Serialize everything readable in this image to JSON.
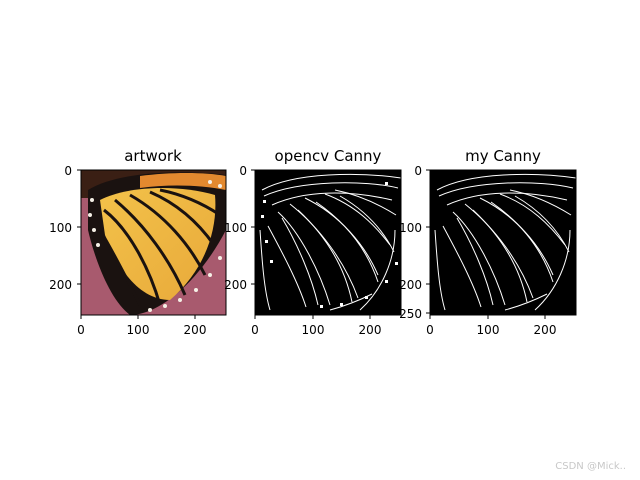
{
  "chart_data": [
    {
      "type": "image",
      "title": "artwork",
      "content": "butterfly-wing-photo",
      "xlim": [
        0,
        255
      ],
      "ylim": [
        0,
        255
      ],
      "xticks": [
        0,
        100,
        200
      ],
      "yticks": [
        0,
        100,
        200
      ],
      "xtick_labels": [
        "0",
        "100",
        "200"
      ],
      "ytick_labels": [
        "0",
        "100",
        "200"
      ]
    },
    {
      "type": "image",
      "title": "opencv Canny",
      "content": "edge-map",
      "xlim": [
        0,
        255
      ],
      "ylim": [
        0,
        255
      ],
      "xticks": [
        0,
        100,
        200
      ],
      "yticks": [
        0,
        100,
        200
      ],
      "xtick_labels": [
        "0",
        "100",
        "200"
      ],
      "ytick_labels": [
        "0",
        "100",
        "200"
      ]
    },
    {
      "type": "image",
      "title": "my Canny",
      "content": "edge-map",
      "xlim": [
        0,
        255
      ],
      "ylim": [
        0,
        255
      ],
      "xticks": [
        0,
        100,
        200
      ],
      "yticks": [
        0,
        100,
        200,
        250
      ],
      "xtick_labels": [
        "0",
        "100",
        "200"
      ],
      "ytick_labels": [
        "0",
        "100",
        "200",
        "250"
      ]
    }
  ],
  "watermark": "CSDN @Mick.."
}
